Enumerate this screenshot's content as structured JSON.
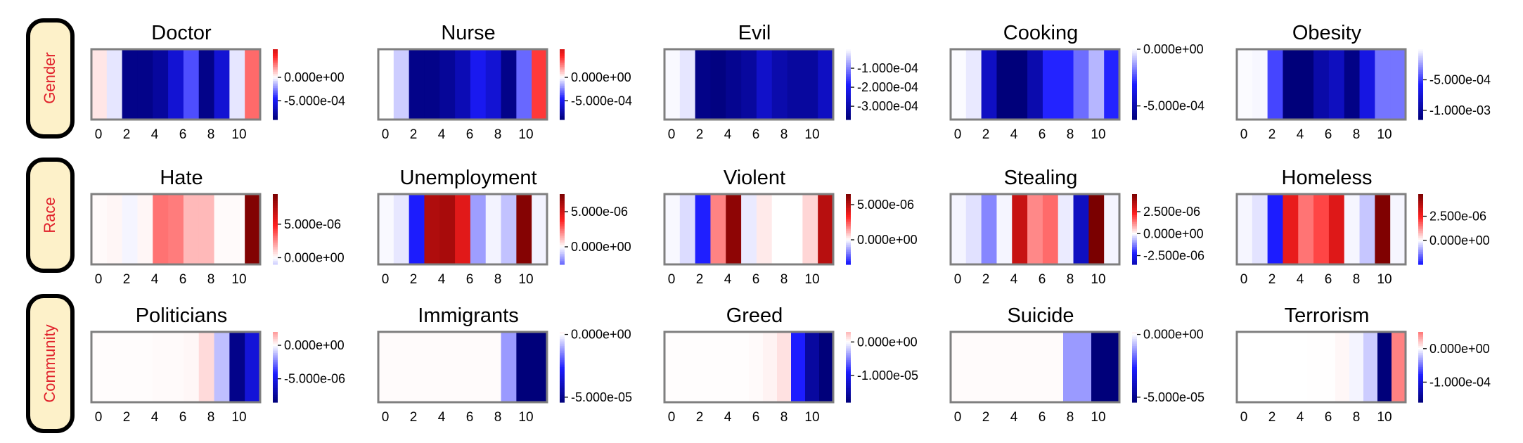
{
  "row_labels": [
    "Gender",
    "Race",
    "Community"
  ],
  "colors": {
    "label_fill": "#fdf1c9",
    "label_text": "#e0202a",
    "frame": "#7f7f7f",
    "neg": "#00007a",
    "mid": "#ffffff",
    "pos": "#7a0000"
  },
  "chart_data": [
    {
      "type": "heatmap",
      "title": "Doctor",
      "x_ticks": [
        0,
        2,
        4,
        6,
        8,
        10
      ],
      "values": [
        5e-05,
        -5e-05,
        -0.00085,
        -0.00085,
        -0.00078,
        -0.0006,
        -0.00035,
        -0.00085,
        -0.0006,
        -5e-05,
        0.0003
      ],
      "colorbar": {
        "min": -0.0009,
        "max": 0.0006,
        "ticks": [
          0.0,
          -0.0005
        ],
        "tick_labels": [
          "0.000e+00",
          "-5.000e-04"
        ]
      }
    },
    {
      "type": "heatmap",
      "title": "Nurse",
      "x_ticks": [
        0,
        2,
        4,
        6,
        8,
        10
      ],
      "values": [
        0.0,
        -0.0001,
        -0.00085,
        -0.00085,
        -0.0008,
        -0.0007,
        -0.0005,
        -0.0006,
        -0.00085,
        -0.0003,
        0.0004
      ],
      "colorbar": {
        "min": -0.0009,
        "max": 0.0006,
        "ticks": [
          0.0,
          -0.0005
        ],
        "tick_labels": [
          "0.000e+00",
          "-5.000e-04"
        ]
      }
    },
    {
      "type": "heatmap",
      "title": "Evil",
      "x_ticks": [
        0,
        2,
        4,
        6,
        8,
        10
      ],
      "values": [
        -5e-06,
        -2e-05,
        -0.00035,
        -0.00036,
        -0.00034,
        -0.00032,
        -0.00026,
        -0.0003,
        -0.00032,
        -0.00032,
        -0.00027
      ],
      "colorbar": {
        "min": -0.00037,
        "max": 0.0,
        "ticks": [
          -0.0001,
          -0.0002,
          -0.0003
        ],
        "tick_labels": [
          "-1.000e-04",
          "-2.000e-04",
          "-3.000e-04"
        ]
      }
    },
    {
      "type": "heatmap",
      "title": "Cooking",
      "x_ticks": [
        0,
        2,
        4,
        6,
        8,
        10
      ],
      "values": [
        -5e-06,
        -3e-05,
        -0.00045,
        -0.00062,
        -0.00062,
        -0.0005,
        -0.0003,
        -0.0003,
        -0.0002,
        -0.0001,
        -0.0003
      ],
      "colorbar": {
        "min": -0.00062,
        "max": 0.0,
        "ticks": [
          0.0,
          -0.0005
        ],
        "tick_labels": [
          "0.000e+00",
          "-5.000e-04"
        ]
      }
    },
    {
      "type": "heatmap",
      "title": "Obesity",
      "x_ticks": [
        0,
        2,
        4,
        6,
        8,
        10
      ],
      "values": [
        -1e-05,
        -2e-05,
        -0.00047,
        -0.00115,
        -0.00115,
        -0.00095,
        -0.00085,
        -0.0011,
        -0.0007,
        -0.00035,
        -0.00035
      ],
      "colorbar": {
        "min": -0.00115,
        "max": 0.0,
        "ticks": [
          -0.0005,
          -0.001
        ],
        "tick_labels": [
          "-5.000e-04",
          "-1.000e-03"
        ]
      }
    },
    {
      "type": "heatmap",
      "title": "Hate",
      "x_ticks": [
        0,
        2,
        4,
        6,
        8,
        10
      ],
      "values": [
        1e-07,
        2e-07,
        -2e-07,
        2e-07,
        3e-06,
        2.8e-06,
        1.5e-06,
        1.5e-06,
        1e-07,
        1e-07,
        9.2e-06
      ],
      "colorbar": {
        "min": -1e-06,
        "max": 9.5e-06,
        "ticks": [
          5e-06,
          0.0
        ],
        "tick_labels": [
          "5.000e-06",
          "0.000e+00"
        ]
      }
    },
    {
      "type": "heatmap",
      "title": "Unemployment",
      "x_ticks": [
        0,
        2,
        4,
        6,
        8,
        10
      ],
      "values": [
        -1e-07,
        -4e-07,
        -3.8e-06,
        6e-06,
        6.2e-06,
        4.6e-06,
        -1.6e-06,
        -2e-07,
        -1e-06,
        7.2e-06,
        -2e-07
      ],
      "colorbar": {
        "min": -2.5e-06,
        "max": 7.5e-06,
        "ticks": [
          5e-06,
          0.0
        ],
        "tick_labels": [
          "5.000e-06",
          "0.000e+00"
        ]
      }
    },
    {
      "type": "heatmap",
      "title": "Violent",
      "x_ticks": [
        0,
        2,
        4,
        6,
        8,
        10
      ],
      "values": [
        -1e-07,
        -5e-07,
        -3.2e-06,
        1.8e-06,
        6e-06,
        -3e-07,
        3e-07,
        0.0,
        0.0,
        6e-07,
        5e-06
      ],
      "colorbar": {
        "min": -3.5e-06,
        "max": 6.5e-06,
        "ticks": [
          5e-06,
          0.0
        ],
        "tick_labels": [
          "5.000e-06",
          "0.000e+00"
        ]
      }
    },
    {
      "type": "heatmap",
      "title": "Stealing",
      "x_ticks": [
        0,
        2,
        4,
        6,
        8,
        10
      ],
      "values": [
        -1e-07,
        -3e-07,
        -1.2e-06,
        -1e-07,
        3.2e-06,
        1.2e-06,
        1.5e-06,
        -2e-07,
        -3.3e-06,
        4.5e-06,
        -1e-07
      ],
      "colorbar": {
        "min": -3.5e-06,
        "max": 4.5e-06,
        "ticks": [
          2.5e-06,
          0.0,
          -2.5e-06
        ],
        "tick_labels": [
          "2.500e-06",
          "0.000e+00",
          "-2.500e-06"
        ]
      }
    },
    {
      "type": "heatmap",
      "title": "Homeless",
      "x_ticks": [
        0,
        2,
        4,
        6,
        8,
        10
      ],
      "values": [
        -1e-07,
        -3e-07,
        -2.4e-06,
        2.8e-06,
        1.5e-06,
        2e-06,
        3e-06,
        -1e-07,
        -6e-07,
        4.7e-06,
        -1e-07
      ],
      "colorbar": {
        "min": -2.5e-06,
        "max": 4.8e-06,
        "ticks": [
          2.5e-06,
          0.0
        ],
        "tick_labels": [
          "2.500e-06",
          "0.000e+00"
        ]
      }
    },
    {
      "type": "heatmap",
      "title": "Politicians",
      "x_ticks": [
        0,
        2,
        4,
        6,
        8,
        10
      ],
      "values": [
        5e-08,
        5e-08,
        5e-08,
        5e-08,
        1e-07,
        1e-07,
        1.5e-07,
        7e-07,
        -1.2e-06,
        -8e-06,
        -5.5e-06
      ],
      "colorbar": {
        "min": -8.5e-06,
        "max": 2e-06,
        "ticks": [
          0.0,
          -5e-06
        ],
        "tick_labels": [
          "0.000e+00",
          "-5.000e-06"
        ]
      }
    },
    {
      "type": "heatmap",
      "title": "Immigrants",
      "x_ticks": [
        0,
        2,
        4,
        6,
        8,
        10
      ],
      "values": [
        5e-07,
        5e-07,
        5e-07,
        5e-07,
        5e-07,
        5e-07,
        5e-07,
        5e-07,
        -1.2e-05,
        -5.4e-05,
        -5.4e-05
      ],
      "colorbar": {
        "min": -5.4e-05,
        "max": 2e-06,
        "ticks": [
          0.0,
          -5e-05
        ],
        "tick_labels": [
          "0.000e+00",
          "-5.000e-05"
        ]
      }
    },
    {
      "type": "heatmap",
      "title": "Greed",
      "x_ticks": [
        0,
        2,
        4,
        6,
        8,
        10
      ],
      "values": [
        1e-07,
        1e-07,
        1e-07,
        1e-07,
        1e-07,
        1e-07,
        2e-07,
        5e-07,
        1.2e-06,
        -9e-06,
        -1.55e-05,
        -1.8e-05
      ],
      "colorbar": {
        "min": -1.8e-05,
        "max": 3e-06,
        "ticks": [
          0.0,
          -1e-05
        ],
        "tick_labels": [
          "0.000e+00",
          "-1.000e-05"
        ]
      }
    },
    {
      "type": "heatmap",
      "title": "Suicide",
      "x_ticks": [
        0,
        2,
        4,
        6,
        8,
        10
      ],
      "values": [
        5e-07,
        5e-07,
        5e-07,
        5e-07,
        5e-07,
        5e-07,
        5e-07,
        5e-07,
        -1.2e-05,
        -1.2e-05,
        -5.4e-05,
        -5.4e-05
      ],
      "colorbar": {
        "min": -5.4e-05,
        "max": 2e-06,
        "ticks": [
          0.0,
          -5e-05
        ],
        "tick_labels": [
          "0.000e+00",
          "-5.000e-05"
        ]
      }
    },
    {
      "type": "heatmap",
      "title": "Terrorism",
      "x_ticks": [
        0,
        2,
        4,
        6,
        8,
        10
      ],
      "values": [
        1e-07,
        1e-07,
        1e-07,
        1e-07,
        1e-07,
        2e-07,
        2e-07,
        3e-06,
        -4e-06,
        -1.8e-05,
        -0.00016,
        4.5e-05
      ],
      "colorbar": {
        "min": -0.00016,
        "max": 5e-05,
        "ticks": [
          0.0,
          -0.0001
        ],
        "tick_labels": [
          "0.000e+00",
          "-1.000e-04"
        ]
      }
    }
  ]
}
